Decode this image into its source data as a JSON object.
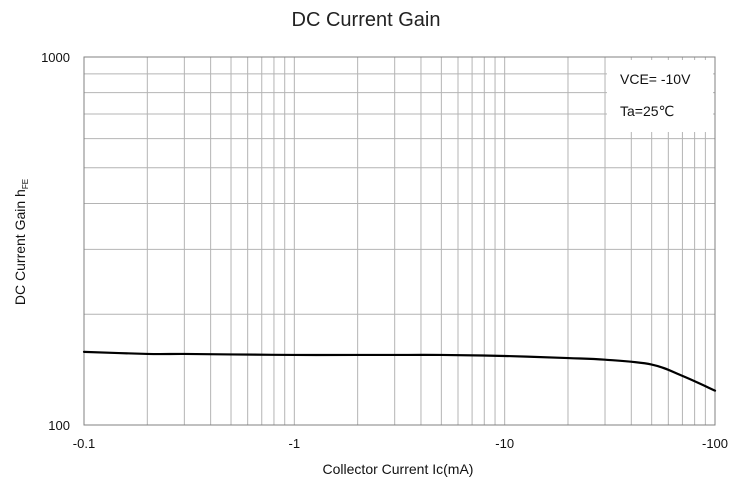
{
  "chart_data": {
    "type": "line",
    "title": "DC Current Gain",
    "xlabel": "Collector Current   Ic(mA)",
    "ylabel": "DC Current Gain",
    "ylabel_symbol": "h",
    "ylabel_subscript": "FE",
    "x_scale": "log",
    "y_scale": "log",
    "xlim": [
      -0.1,
      -100
    ],
    "ylim": [
      100,
      1000
    ],
    "x_ticks": [
      "-0.1",
      "-1",
      "-10",
      "-100"
    ],
    "y_ticks": [
      "100",
      "1000"
    ],
    "grid": true,
    "annotations": [
      "VCE= -10V",
      "Ta=25℃"
    ],
    "annotation_position": "top-right",
    "series": [
      {
        "x": [
          -0.1,
          -0.2,
          -0.3,
          -0.5,
          -1,
          -2,
          -3,
          -5,
          -10,
          -20,
          -30,
          -50,
          -70,
          -100
        ],
        "y": [
          158,
          156,
          156,
          155.5,
          155,
          155,
          155,
          155,
          154,
          152,
          150.5,
          146,
          136,
          124
        ]
      }
    ],
    "colors": {
      "line": "#000000",
      "grid": "#b4b4b4",
      "frame": "#808080"
    }
  }
}
